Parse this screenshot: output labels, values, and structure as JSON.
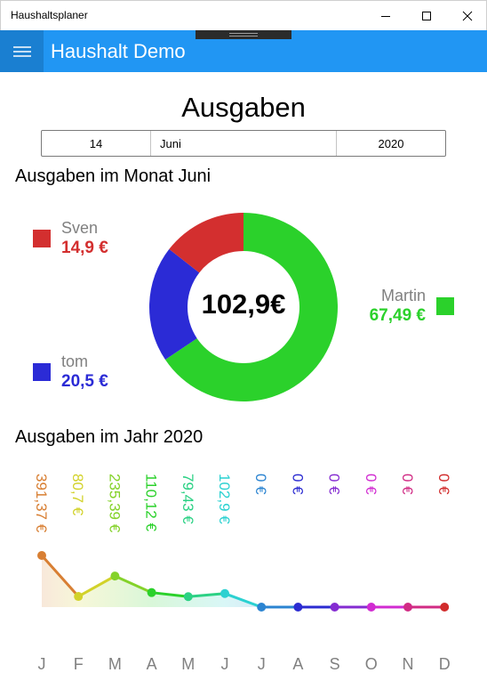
{
  "window": {
    "title": "Haushaltsplaner"
  },
  "app": {
    "title": "Haushalt Demo",
    "menu_icon": "hamburger-menu-icon"
  },
  "page": {
    "title": "Ausgaben"
  },
  "date_picker": {
    "day": "14",
    "month": "Juni",
    "year": "2020"
  },
  "month_section": {
    "title": "Ausgaben im Monat Juni",
    "total": "102,9€",
    "people": [
      {
        "name": "Sven",
        "amount": "14,9 €",
        "value": 14.9,
        "color": "#d32f2f"
      },
      {
        "name": "tom",
        "amount": "20,5 €",
        "value": 20.5,
        "color": "#2b2bd6"
      },
      {
        "name": "Martin",
        "amount": "67,49 €",
        "value": 67.49,
        "color": "#2bd12b"
      }
    ]
  },
  "year_section": {
    "title": "Ausgaben im Jahr 2020"
  },
  "chart_data": [
    {
      "type": "pie",
      "categories": [
        "Sven",
        "tom",
        "Martin"
      ],
      "values": [
        14.9,
        20.5,
        67.49
      ],
      "colors": [
        "#d32f2f",
        "#2b2bd6",
        "#2bd12b"
      ],
      "title": "Ausgaben im Monat Juni",
      "total_label": "102,9€"
    },
    {
      "type": "line",
      "title": "Ausgaben im Jahr 2020",
      "categories": [
        "J",
        "F",
        "M",
        "A",
        "M",
        "J",
        "J",
        "A",
        "S",
        "O",
        "N",
        "D"
      ],
      "values": [
        391.37,
        80.7,
        235.39,
        110.12,
        79.43,
        102.9,
        0,
        0,
        0,
        0,
        0,
        0
      ],
      "value_labels": [
        "391,37 €",
        "80,7 €",
        "235,39 €",
        "110,12 €",
        "79,43 €",
        "102,9 €",
        "0 €",
        "0 €",
        "0 €",
        "0 €",
        "0 €",
        "0 €"
      ],
      "colors": [
        "#d87f33",
        "#d2d22a",
        "#84d22a",
        "#2bd12b",
        "#2bd184",
        "#2bd1d1",
        "#2b84d1",
        "#2b2bd1",
        "#842bd1",
        "#d12bd1",
        "#d12b84",
        "#d12b2b"
      ],
      "xlabel": "",
      "ylabel": "",
      "grid": false
    }
  ]
}
